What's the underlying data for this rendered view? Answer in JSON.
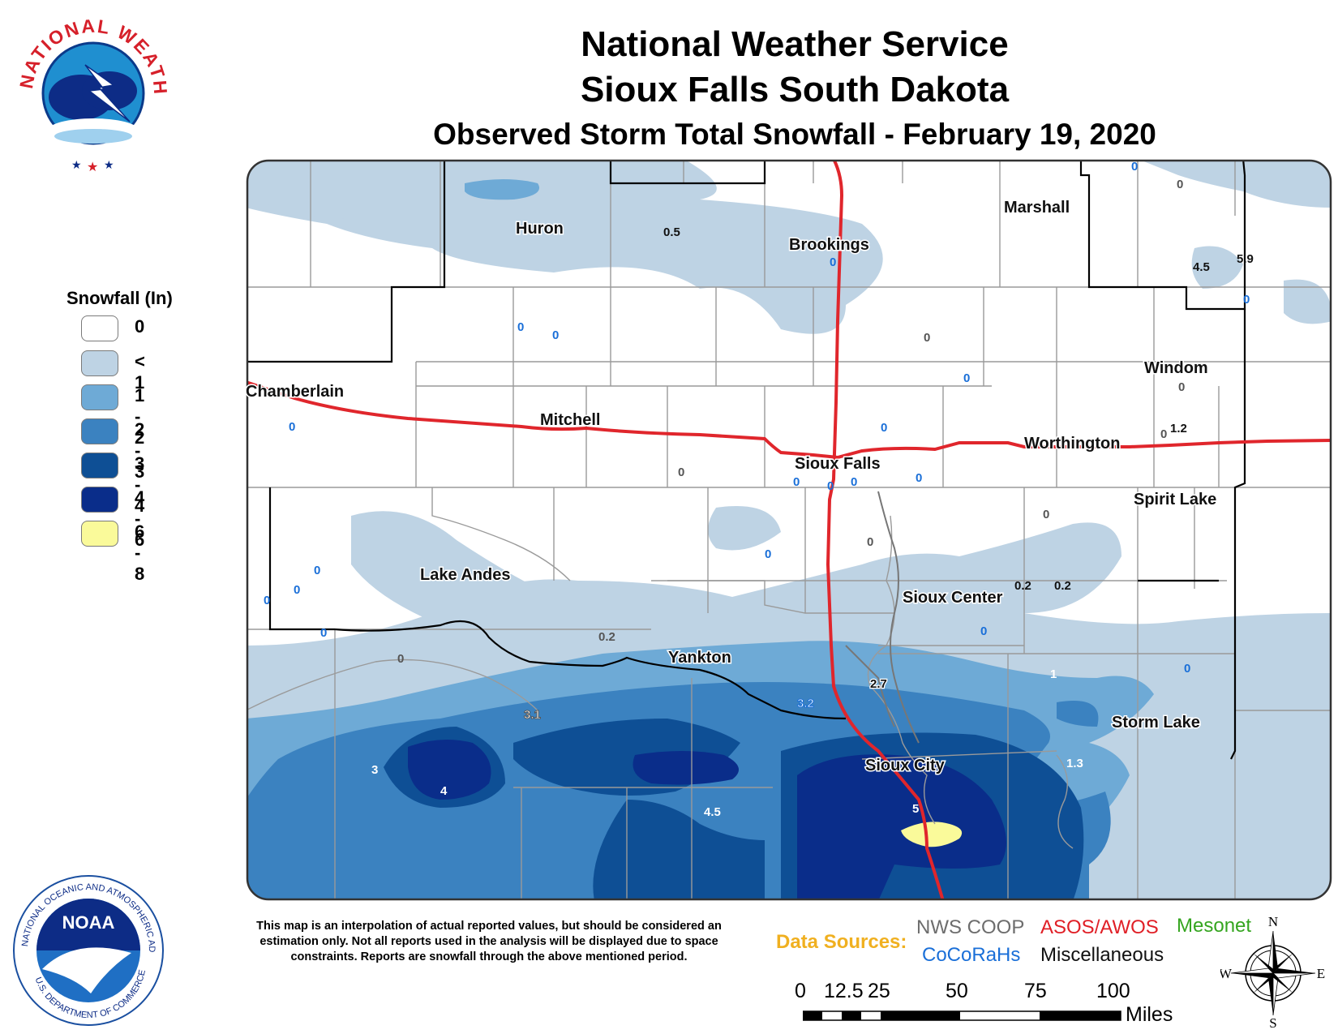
{
  "header": {
    "line1": "National Weather Service",
    "line2": "Sioux Falls South Dakota",
    "line3": "Observed Storm Total Snowfall - February 19, 2020"
  },
  "logos": {
    "nws_text": "NATIONAL WEATHER SERVICE",
    "noaa_text": "NOAA",
    "noaa_ring_top": "NATIONAL OCEANIC AND ATMOSPHERIC ADMINISTRATION",
    "noaa_ring_bottom": "U.S. DEPARTMENT OF COMMERCE"
  },
  "legend": {
    "title": "Snowfall (In)",
    "items": [
      {
        "label": "0",
        "color": "#ffffff"
      },
      {
        "label": "< 1",
        "color": "#bed3e4"
      },
      {
        "label": "1 - 2",
        "color": "#6eaad6"
      },
      {
        "label": "2 - 3",
        "color": "#3b82c0"
      },
      {
        "label": "3 - 4",
        "color": "#0e4f95"
      },
      {
        "label": "4 - 6",
        "color": "#0a2d8a"
      },
      {
        "label": "6 - 8",
        "color": "#fafa9a"
      }
    ]
  },
  "cities": {
    "huron": "Huron",
    "brookings": "Brookings",
    "marshall": "Marshall",
    "chamberlain": "Chamberlain",
    "mitchell": "Mitchell",
    "sioux_falls": "Sioux Falls",
    "worthington": "Worthington",
    "windom": "Windom",
    "spirit_lake": "Spirit Lake",
    "lake_andes": "Lake Andes",
    "sioux_center": "Sioux Center",
    "yankton": "Yankton",
    "storm_lake": "Storm Lake",
    "sioux_city": "Sioux City"
  },
  "observations": {
    "o1": "0.5",
    "o2": "0",
    "o3": "0",
    "o4": "0",
    "o5": "0",
    "o6": "4.5",
    "o7": "5.9",
    "o8": "0",
    "o9": "0",
    "o10": "0",
    "o11": "0",
    "o12": "0",
    "o13": "1.2",
    "o14": "0",
    "o15": "0",
    "o16": "0",
    "o17": "0",
    "o18": "0",
    "o19": "0",
    "o20": "0",
    "o21": "0",
    "o22": "0",
    "o23": "0",
    "o24": "0",
    "o25": "0",
    "o26": "0",
    "o27": "0",
    "o28": "0",
    "o29": "0.2",
    "o30": "0.2",
    "o31": "0",
    "o32": "0.2",
    "o33": "0",
    "o34": "0",
    "o35": "1",
    "o36": "2.7",
    "o37": "3.2",
    "o38": "3.1",
    "o39": "3",
    "o40": "4",
    "o41": "4.5",
    "o42": "5",
    "o43": "1.3",
    "o44": "0"
  },
  "disclaimer": "This map is an interpolation of actual reported values, but should be considered an estimation only. Not all reports used in the analysis will be displayed due to space constraints. Reports are snowfall through the above mentioned period.",
  "data_sources": {
    "label": "Data Sources:",
    "nws_coop": "NWS COOP",
    "asos": "ASOS/AWOS",
    "mesonet": "Mesonet",
    "cocorahs": "CoCoRaHs",
    "misc": "Miscellaneous"
  },
  "scale": {
    "ticks": [
      "0",
      "12.5",
      "25",
      "50",
      "75",
      "100"
    ],
    "unit": "Miles"
  },
  "compass": {
    "n": "N",
    "e": "E",
    "s": "S",
    "w": "W"
  }
}
